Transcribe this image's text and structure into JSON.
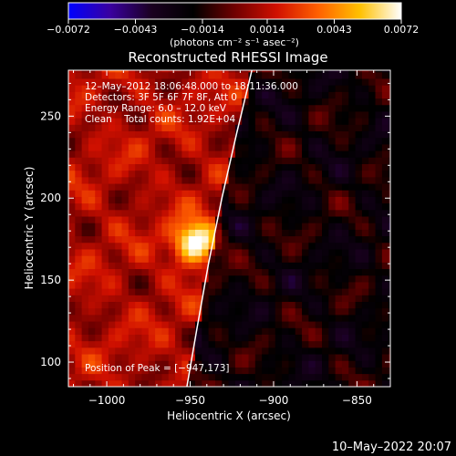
{
  "chart_data": {
    "type": "heatmap",
    "title": "Reconstructed RHESSI Image",
    "xlabel": "Heliocentric X (arcsec)",
    "ylabel": "Heliocentric Y (arcsec)",
    "xlim": [
      -1023,
      -830
    ],
    "ylim": [
      85,
      278
    ],
    "x_ticks": [
      -1000,
      -950,
      -900,
      -850
    ],
    "x_tick_labels": [
      "−1000",
      "−950",
      "−900",
      "−850"
    ],
    "y_ticks": [
      100,
      150,
      200,
      250
    ],
    "y_tick_labels": [
      "100",
      "150",
      "200",
      "250"
    ],
    "colorbar": {
      "min": -0.0072,
      "max": 0.0072,
      "ticks": [
        -0.0072,
        -0.0043,
        -0.0014,
        0.0014,
        0.0043,
        0.0072
      ],
      "tick_labels": [
        "−0.0072",
        "−0.0043",
        "−0.0014",
        "0.0014",
        "0.0043",
        "0.0072"
      ],
      "unit_label": "(photons cm⁻² s⁻¹ asec⁻²)",
      "colormap": [
        "#0000ff",
        "#3a00a0",
        "#1a0020",
        "#000000",
        "#700000",
        "#d01000",
        "#ff6000",
        "#ffc000",
        "#ffffff"
      ]
    },
    "annotations": {
      "time_range": "12–May–2012 18:06:48.000 to 18:11:36.000",
      "detectors": "Detectors: 3F 5F 6F 7F 8F, Att 0",
      "energy": "Energy Range: 6.0 – 12.0 keV",
      "clean_counts": "Clean    Total counts: 1.92E+04",
      "peak": "Position of Peak = [−947,173]"
    },
    "peak": {
      "x": -947,
      "y": 173,
      "value": 0.0072
    },
    "limb_curve": [
      [
        -952,
        85
      ],
      [
        -946,
        120
      ],
      [
        -939,
        160
      ],
      [
        -931,
        200
      ],
      [
        -922,
        240
      ],
      [
        -913,
        278
      ]
    ]
  },
  "footer": {
    "timestamp": "10–May–2022 20:07"
  }
}
